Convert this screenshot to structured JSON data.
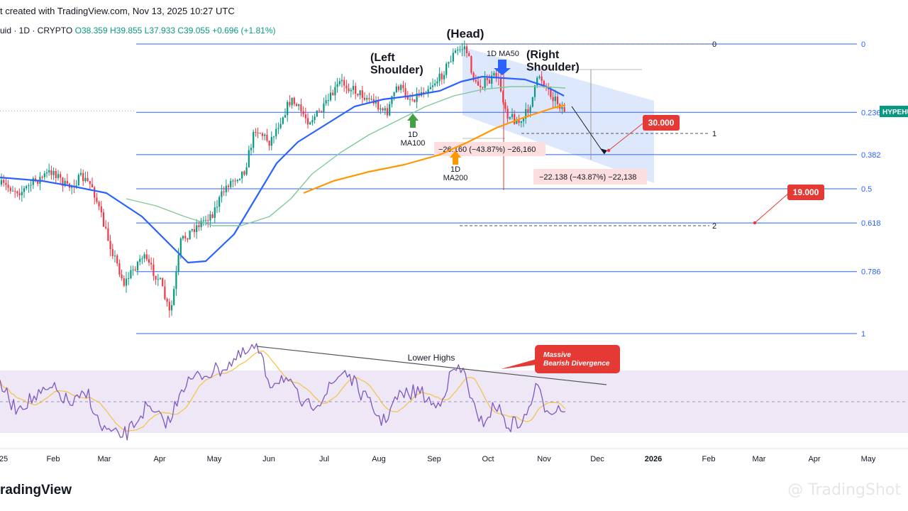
{
  "header": {
    "created": "t created with TradingView.com, Nov 13, 2025 10:27 UTC",
    "symbol": "uid · 1D · CRYPTO",
    "ohlc": "O38.359 H39.855 L37.933 C39.055 +0.696 (+1.81%)"
  },
  "footer": {
    "logo": "radingView",
    "watermark": "@ TradingShot"
  },
  "chart_data": {
    "type": "candlestick",
    "symbol_tag": "HYPEHU",
    "x_ticks": [
      "25",
      "Feb",
      "Mar",
      "Apr",
      "May",
      "Jun",
      "Jul",
      "Aug",
      "Sep",
      "Oct",
      "Nov",
      "Dec",
      "2026",
      "Feb",
      "Mar",
      "Apr",
      "May"
    ],
    "fib_levels": [
      {
        "label": "0",
        "ratio": 0
      },
      {
        "label": "0.236",
        "ratio": 0.236
      },
      {
        "label": "0.382",
        "ratio": 0.382
      },
      {
        "label": "0.5",
        "ratio": 0.5
      },
      {
        "label": "0.618",
        "ratio": 0.618
      },
      {
        "label": "0.786",
        "ratio": 0.786
      },
      {
        "label": "1",
        "ratio": 1
      }
    ],
    "projection_labels": [
      "0",
      "1",
      "2"
    ],
    "annotations": {
      "head": "(Head)",
      "left_shoulder": "(Left\nShoulder)",
      "right_shoulder": "(Right\nShoulder)",
      "ma50": "1D MA50",
      "ma100": "1D\nMA100",
      "ma200": "1D\nMA200",
      "measure1": "−26.160 (−43.87%) −26,160",
      "measure2": "−22.138 (−43.87%) −22,138",
      "target1": "30.000",
      "target2": "19.000",
      "lower_highs": "Lower Highs",
      "divergence": "Massive\nBearish Divergence"
    },
    "colors": {
      "up": "#089981",
      "down": "#f23645",
      "ma50": "#2962ff",
      "ma100": "#81c995",
      "ma200": "#ff9800",
      "fib": "#2962ff",
      "channel": "#d6e2fb",
      "rsi": "#7e57c2",
      "rsi_ma": "#f5c242",
      "rsi_band": "#ede7f6",
      "target": "#e53935"
    }
  }
}
